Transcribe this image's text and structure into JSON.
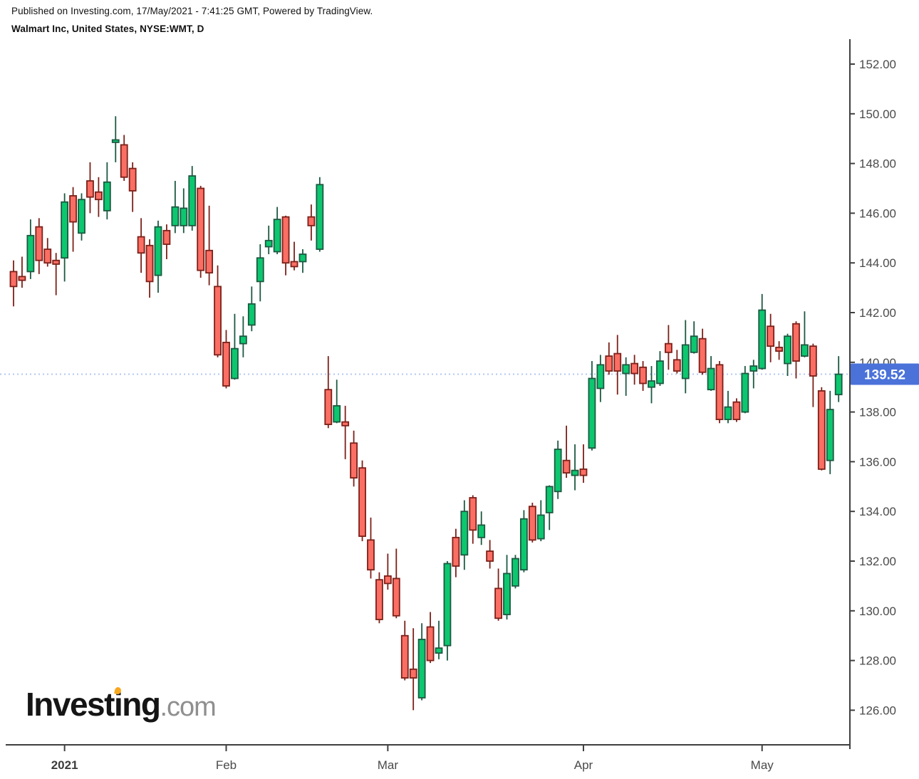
{
  "header": {
    "published_line": "Published on Investing.com, 17/May/2021 - 7:41:25 GMT, Powered by TradingView.",
    "instrument_line": "Walmart Inc, United States, NYSE:WMT, D"
  },
  "watermark": {
    "part1": "Invest",
    "part2": "i",
    "part3": "ng",
    "suffix": ".com"
  },
  "last_price": {
    "label": "139.52",
    "value": 139.52,
    "badge_color": "#4a72d9",
    "line_color": "#b3c6f2",
    "text_color": "#ffffff"
  },
  "price_axis": {
    "tick_labels": [
      "152.00",
      "150.00",
      "148.00",
      "146.00",
      "144.00",
      "142.00",
      "140.00",
      "138.00",
      "136.00",
      "134.00",
      "132.00",
      "130.00",
      "128.00",
      "126.00"
    ],
    "tick_values": [
      152,
      150,
      148,
      146,
      144,
      142,
      140,
      138,
      136,
      134,
      132,
      130,
      128,
      126
    ],
    "color": "#4a4a4a"
  },
  "time_axis": {
    "labels": [
      {
        "text": "2021",
        "candle_index": 6,
        "bold": true
      },
      {
        "text": "Feb",
        "candle_index": 25,
        "bold": false
      },
      {
        "text": "Mar",
        "candle_index": 44,
        "bold": false
      },
      {
        "text": "Apr",
        "candle_index": 67,
        "bold": false
      },
      {
        "text": "May",
        "candle_index": 88,
        "bold": false
      }
    ],
    "color": "#4a4a4a"
  },
  "colors": {
    "up_fill": "#0cc76f",
    "up_stroke": "#1c5941",
    "down_fill": "#fb6e64",
    "down_stroke": "#7c2018",
    "axis": "#3f3f3f"
  },
  "chart_data": {
    "type": "candlestick",
    "title": "Walmart Inc, United States, NYSE:WMT, D",
    "symbol": "NYSE:WMT",
    "interval": "D",
    "ylim": [
      126,
      152
    ],
    "grid": false,
    "last_close": 139.52,
    "columns": [
      "date",
      "open",
      "high",
      "low",
      "close"
    ],
    "candles": [
      [
        "2020-12-23",
        143.65,
        144.1,
        142.25,
        143.05
      ],
      [
        "2020-12-24",
        143.45,
        144.25,
        143.0,
        143.3
      ],
      [
        "2020-12-28",
        143.65,
        145.75,
        143.35,
        145.1
      ],
      [
        "2020-12-29",
        145.45,
        145.8,
        143.55,
        144.1
      ],
      [
        "2020-12-30",
        144.55,
        145.0,
        143.85,
        144.0
      ],
      [
        "2020-12-31",
        144.1,
        144.4,
        142.7,
        143.95
      ],
      [
        "2021-01-04",
        144.2,
        146.8,
        143.25,
        146.45
      ],
      [
        "2021-01-05",
        146.7,
        147.05,
        144.45,
        145.65
      ],
      [
        "2021-01-06",
        145.2,
        146.8,
        144.9,
        146.55
      ],
      [
        "2021-01-07",
        147.3,
        148.05,
        146.0,
        146.65
      ],
      [
        "2021-01-08",
        146.85,
        147.45,
        145.85,
        146.55
      ],
      [
        "2021-01-11",
        146.1,
        148.05,
        145.75,
        147.25
      ],
      [
        "2021-01-12",
        148.85,
        149.9,
        148.05,
        148.95
      ],
      [
        "2021-01-13",
        148.75,
        149.15,
        147.3,
        147.45
      ],
      [
        "2021-01-14",
        147.8,
        148.05,
        146.05,
        146.9
      ],
      [
        "2021-01-15",
        145.05,
        145.8,
        143.6,
        144.4
      ],
      [
        "2021-01-19",
        144.7,
        144.95,
        142.6,
        143.25
      ],
      [
        "2021-01-20",
        143.5,
        145.7,
        142.8,
        145.45
      ],
      [
        "2021-01-21",
        145.3,
        145.55,
        144.15,
        144.75
      ],
      [
        "2021-01-22",
        145.5,
        147.3,
        145.2,
        146.25
      ],
      [
        "2021-01-25",
        145.5,
        147.0,
        145.2,
        146.2
      ],
      [
        "2021-01-26",
        145.5,
        147.9,
        145.3,
        147.5
      ],
      [
        "2021-01-27",
        147.0,
        147.1,
        143.4,
        143.7
      ],
      [
        "2021-01-28",
        144.5,
        146.3,
        143.1,
        143.6
      ],
      [
        "2021-01-29",
        143.05,
        143.9,
        140.2,
        140.3
      ],
      [
        "2021-02-01",
        140.8,
        141.3,
        138.95,
        139.05
      ],
      [
        "2021-02-02",
        139.35,
        141.95,
        139.3,
        140.55
      ],
      [
        "2021-02-03",
        140.75,
        141.85,
        140.2,
        141.05
      ],
      [
        "2021-02-04",
        141.5,
        143.05,
        141.25,
        142.35
      ],
      [
        "2021-02-05",
        143.25,
        144.75,
        142.45,
        144.2
      ],
      [
        "2021-02-08",
        144.65,
        145.5,
        144.35,
        144.9
      ],
      [
        "2021-02-09",
        144.45,
        146.25,
        144.35,
        145.75
      ],
      [
        "2021-02-10",
        145.85,
        145.9,
        143.5,
        144.0
      ],
      [
        "2021-02-11",
        144.05,
        144.85,
        143.7,
        143.85
      ],
      [
        "2021-02-12",
        144.05,
        144.55,
        143.6,
        144.35
      ],
      [
        "2021-02-16",
        145.85,
        146.35,
        144.9,
        145.5
      ],
      [
        "2021-02-17",
        144.55,
        147.45,
        144.45,
        147.15
      ],
      [
        "2021-02-18",
        138.9,
        140.25,
        137.35,
        137.5
      ],
      [
        "2021-02-19",
        137.6,
        139.3,
        137.55,
        138.25
      ],
      [
        "2021-02-22",
        137.6,
        138.25,
        136.1,
        137.45
      ],
      [
        "2021-02-23",
        136.75,
        137.25,
        135.0,
        135.35
      ],
      [
        "2021-02-24",
        135.75,
        136.05,
        132.8,
        133.0
      ],
      [
        "2021-02-25",
        132.85,
        133.75,
        131.3,
        131.65
      ],
      [
        "2021-02-26",
        131.25,
        131.55,
        129.5,
        129.65
      ],
      [
        "2021-03-01",
        131.4,
        132.3,
        130.85,
        131.1
      ],
      [
        "2021-03-02",
        131.3,
        132.5,
        129.7,
        129.8
      ],
      [
        "2021-03-03",
        129.0,
        129.6,
        127.2,
        127.3
      ],
      [
        "2021-03-04",
        127.65,
        129.3,
        126.0,
        127.3
      ],
      [
        "2021-03-05",
        126.5,
        129.5,
        126.4,
        128.85
      ],
      [
        "2021-03-08",
        129.35,
        129.95,
        127.9,
        128.0
      ],
      [
        "2021-03-09",
        128.3,
        129.6,
        128.05,
        128.5
      ],
      [
        "2021-03-10",
        128.6,
        132.0,
        128.0,
        131.9
      ],
      [
        "2021-03-11",
        132.95,
        133.3,
        131.35,
        131.8
      ],
      [
        "2021-03-12",
        132.25,
        134.45,
        131.65,
        134.0
      ],
      [
        "2021-03-15",
        134.55,
        134.65,
        132.7,
        133.25
      ],
      [
        "2021-03-16",
        132.95,
        134.0,
        132.65,
        133.45
      ],
      [
        "2021-03-17",
        132.4,
        132.85,
        131.7,
        132.0
      ],
      [
        "2021-03-18",
        130.9,
        131.7,
        129.6,
        129.7
      ],
      [
        "2021-03-19",
        129.85,
        132.25,
        129.65,
        131.5
      ],
      [
        "2021-03-22",
        131.0,
        132.25,
        130.9,
        132.1
      ],
      [
        "2021-03-23",
        131.65,
        134.05,
        131.55,
        133.7
      ],
      [
        "2021-03-24",
        134.2,
        134.35,
        132.75,
        132.85
      ],
      [
        "2021-03-25",
        132.9,
        134.45,
        132.8,
        133.85
      ],
      [
        "2021-03-26",
        133.95,
        135.05,
        133.25,
        135.0
      ],
      [
        "2021-03-29",
        134.8,
        136.85,
        134.5,
        136.5
      ],
      [
        "2021-03-30",
        136.05,
        137.45,
        135.35,
        135.55
      ],
      [
        "2021-03-31",
        135.45,
        136.7,
        134.85,
        135.65
      ],
      [
        "2021-04-01",
        135.7,
        136.7,
        135.15,
        135.45
      ],
      [
        "2021-04-05",
        136.55,
        140.05,
        136.45,
        139.35
      ],
      [
        "2021-04-06",
        138.95,
        140.3,
        138.4,
        139.9
      ],
      [
        "2021-04-07",
        140.25,
        140.8,
        139.5,
        139.65
      ],
      [
        "2021-04-08",
        140.35,
        141.1,
        138.7,
        139.65
      ],
      [
        "2021-04-09",
        139.55,
        140.2,
        138.65,
        139.9
      ],
      [
        "2021-04-12",
        139.95,
        140.3,
        139.1,
        139.55
      ],
      [
        "2021-04-13",
        139.8,
        140.05,
        138.85,
        139.15
      ],
      [
        "2021-04-14",
        139.0,
        139.85,
        138.35,
        139.25
      ],
      [
        "2021-04-15",
        139.15,
        140.45,
        139.05,
        140.05
      ],
      [
        "2021-04-16",
        140.75,
        141.5,
        139.7,
        140.4
      ],
      [
        "2021-04-19",
        140.1,
        140.5,
        139.55,
        139.65
      ],
      [
        "2021-04-20",
        139.35,
        141.7,
        138.75,
        140.7
      ],
      [
        "2021-04-21",
        140.4,
        141.65,
        140.35,
        141.05
      ],
      [
        "2021-04-22",
        140.95,
        141.35,
        139.5,
        139.6
      ],
      [
        "2021-04-23",
        138.9,
        140.25,
        138.85,
        139.75
      ],
      [
        "2021-04-26",
        139.9,
        140.05,
        137.55,
        137.7
      ],
      [
        "2021-04-27",
        137.7,
        138.85,
        137.55,
        138.2
      ],
      [
        "2021-04-28",
        138.4,
        138.55,
        137.6,
        137.7
      ],
      [
        "2021-04-29",
        138.0,
        139.85,
        137.95,
        139.55
      ],
      [
        "2021-04-30",
        139.65,
        140.1,
        138.95,
        139.85
      ],
      [
        "2021-05-03",
        139.75,
        142.75,
        139.7,
        142.1
      ],
      [
        "2021-05-04",
        141.45,
        141.95,
        140.0,
        140.65
      ],
      [
        "2021-05-05",
        140.6,
        140.85,
        140.1,
        140.45
      ],
      [
        "2021-05-06",
        139.95,
        141.15,
        139.45,
        141.05
      ],
      [
        "2021-05-07",
        141.55,
        141.65,
        139.35,
        140.05
      ],
      [
        "2021-05-10",
        140.25,
        142.05,
        140.2,
        140.7
      ],
      [
        "2021-05-11",
        140.65,
        140.75,
        138.2,
        139.45
      ],
      [
        "2021-05-12",
        138.85,
        139.0,
        135.65,
        135.7
      ],
      [
        "2021-05-13",
        136.05,
        138.85,
        135.5,
        138.1
      ],
      [
        "2021-05-14",
        138.7,
        140.25,
        138.4,
        139.52
      ]
    ]
  }
}
